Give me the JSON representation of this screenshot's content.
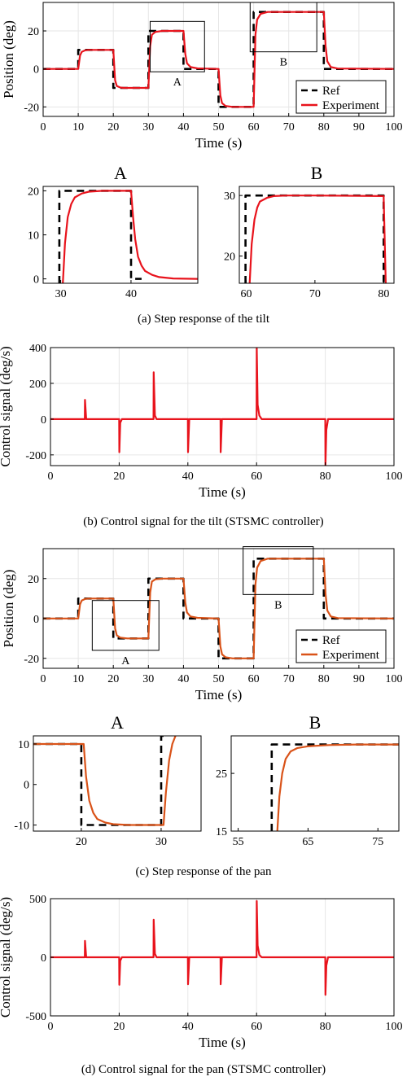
{
  "colors": {
    "ref": "#000000",
    "tilt": "#e8131c",
    "pan": "#d95319",
    "grid": "#e6e6e6"
  },
  "captions": {
    "a": "(a) Step response of the tilt",
    "b": "(b) Control signal for the tilt (STSMC controller)",
    "c": "(c) Step response of the pan",
    "d": "(d) Control signal for the pan (STSMC controller)"
  },
  "chart_data": [
    {
      "id": "tilt_pos",
      "type": "line",
      "xlabel": "Time (s)",
      "ylabel": "Position (deg)",
      "xlim": [
        0,
        100
      ],
      "ylim": [
        -25,
        35
      ],
      "xticks": [
        0,
        10,
        20,
        30,
        40,
        50,
        60,
        70,
        80,
        90,
        100
      ],
      "yticks": [
        -20,
        0,
        20
      ],
      "grid": true,
      "legend": {
        "position": "bottom-right",
        "entries": [
          "Ref",
          "Experiment"
        ]
      },
      "series": [
        {
          "name": "Ref",
          "style": "dashed",
          "color": "#000000",
          "x": [
            0,
            10,
            10,
            20,
            20,
            30,
            30,
            40,
            40,
            50,
            50,
            60,
            60,
            80,
            80,
            100
          ],
          "y": [
            0,
            0,
            10,
            10,
            -10,
            -10,
            20,
            20,
            0,
            0,
            -20,
            -20,
            30,
            30,
            0,
            0
          ]
        },
        {
          "name": "Experiment",
          "style": "solid",
          "color": "#e8131c",
          "x": [
            0,
            10,
            10.5,
            11,
            12,
            13,
            20,
            20.5,
            21,
            22,
            23,
            30,
            30.5,
            31,
            32,
            34,
            40,
            40.5,
            41,
            42,
            44,
            50,
            50.5,
            51,
            52,
            54,
            60,
            60.5,
            61,
            62,
            64,
            80,
            80.5,
            81,
            82,
            84,
            100
          ],
          "y": [
            0,
            0,
            7,
            9,
            9.8,
            10,
            10,
            -6,
            -9,
            -9.8,
            -10,
            -10,
            12,
            18,
            19.5,
            20,
            20,
            8,
            3,
            1,
            0.3,
            0,
            -14,
            -18,
            -19.5,
            -20,
            -20,
            18,
            26,
            29,
            30,
            30,
            12,
            4,
            1,
            0.2,
            0
          ]
        }
      ],
      "zoom_boxes": [
        {
          "label": "A",
          "x0": 30.5,
          "x1": 46,
          "y0": -1.5,
          "y1": 25
        },
        {
          "label": "B",
          "x0": 59,
          "x1": 78,
          "y0": 9,
          "y1": 35
        }
      ]
    },
    {
      "id": "tilt_zoom_A",
      "type": "line",
      "title": "A",
      "xlim": [
        27.5,
        49.5
      ],
      "ylim": [
        -1,
        21
      ],
      "xticks": [
        30,
        40
      ],
      "yticks": [
        0,
        10,
        20
      ],
      "grid": false,
      "series": [
        {
          "name": "Ref",
          "style": "dashed",
          "color": "#000000",
          "x": [
            29.8,
            29.8,
            40,
            40,
            41.5
          ],
          "y": [
            -1,
            20,
            20,
            0,
            0
          ]
        },
        {
          "name": "Experiment",
          "style": "solid",
          "color": "#e8131c",
          "x": [
            30.3,
            30.6,
            31,
            31.5,
            32,
            33,
            34,
            36,
            40,
            40.3,
            40.6,
            41,
            41.5,
            42,
            43,
            44,
            46,
            49.5
          ],
          "y": [
            -1,
            8,
            14,
            17,
            18.5,
            19.4,
            19.8,
            20,
            20,
            14,
            9,
            5,
            3,
            1.8,
            0.9,
            0.4,
            0.1,
            0
          ]
        }
      ]
    },
    {
      "id": "tilt_zoom_B",
      "type": "line",
      "title": "B",
      "xlim": [
        59,
        81.5
      ],
      "ylim": [
        15.5,
        31.5
      ],
      "xticks": [
        60,
        70,
        80
      ],
      "yticks": [
        20,
        30
      ],
      "grid": false,
      "series": [
        {
          "name": "Ref",
          "style": "dashed",
          "color": "#000000",
          "x": [
            59.9,
            59.9,
            64,
            80,
            80
          ],
          "y": [
            15.5,
            30,
            30,
            30,
            15.5
          ]
        },
        {
          "name": "Experiment",
          "style": "solid",
          "color": "#e8131c",
          "x": [
            60.5,
            60.8,
            61.2,
            61.6,
            62,
            63,
            64,
            66,
            70,
            80,
            80.3
          ],
          "y": [
            15.5,
            22,
            26,
            28,
            29,
            29.6,
            29.9,
            30,
            30,
            29.9,
            15.5
          ]
        }
      ]
    },
    {
      "id": "tilt_ctrl",
      "type": "line",
      "xlabel": "Time (s)",
      "ylabel": "Control signal (deg/s)",
      "xlim": [
        0,
        100
      ],
      "ylim": [
        -260,
        400
      ],
      "xticks": [
        0,
        20,
        40,
        60,
        80,
        100
      ],
      "yticks": [
        -200,
        0,
        200,
        400
      ],
      "grid": true,
      "series": [
        {
          "name": "",
          "style": "solid",
          "color": "#e8131c",
          "x": [
            0,
            10,
            10.05,
            10.4,
            20,
            20.05,
            20.3,
            20.8,
            30,
            30.05,
            30.4,
            30.9,
            40,
            40.05,
            40.4,
            49.5,
            49.55,
            49.9,
            60,
            60.05,
            60.3,
            60.8,
            61.5,
            80,
            80.05,
            80.3,
            80.8,
            100
          ],
          "y": [
            0,
            0,
            108,
            0,
            0,
            -185,
            -20,
            0,
            0,
            262,
            20,
            0,
            0,
            -185,
            0,
            0,
            -185,
            0,
            0,
            400,
            80,
            20,
            0,
            0,
            -262,
            -60,
            0,
            0
          ]
        }
      ]
    },
    {
      "id": "pan_pos",
      "type": "line",
      "xlabel": "Time (s)",
      "ylabel": "Position (deg)",
      "xlim": [
        0,
        100
      ],
      "ylim": [
        -25,
        35
      ],
      "xticks": [
        0,
        10,
        20,
        30,
        40,
        50,
        60,
        70,
        80,
        90,
        100
      ],
      "yticks": [
        -20,
        0,
        20
      ],
      "grid": true,
      "legend": {
        "position": "bottom-right",
        "entries": [
          "Ref",
          "Experiment"
        ]
      },
      "series": [
        {
          "name": "Ref",
          "style": "dashed",
          "color": "#000000",
          "x": [
            0,
            10,
            10,
            20,
            20,
            30,
            30,
            40,
            40,
            50,
            50,
            60,
            60,
            80,
            80,
            100
          ],
          "y": [
            0,
            0,
            10,
            10,
            -10,
            -10,
            20,
            20,
            0,
            0,
            -20,
            -20,
            30,
            30,
            0,
            0
          ]
        },
        {
          "name": "Experiment",
          "style": "solid",
          "color": "#d95319",
          "x": [
            0,
            10,
            10.5,
            11,
            12,
            13,
            20,
            20.5,
            21,
            22,
            24,
            30,
            30.5,
            31,
            32,
            34,
            40,
            40.5,
            41,
            42,
            44,
            50,
            50.5,
            51,
            52,
            54,
            60,
            60.5,
            61,
            62,
            64,
            80,
            80.5,
            81,
            82,
            84,
            100
          ],
          "y": [
            0,
            0,
            7,
            9,
            9.8,
            10,
            10,
            -5,
            -8.5,
            -9.6,
            -10,
            -10,
            13,
            18.5,
            19.6,
            20,
            20,
            8,
            3,
            1,
            0.3,
            0,
            -14,
            -18,
            -19.5,
            -20,
            -20,
            17,
            25.5,
            28.8,
            30,
            30,
            12,
            4,
            1,
            0.2,
            0
          ]
        }
      ],
      "zoom_boxes": [
        {
          "label": "A",
          "x0": 14,
          "x1": 33,
          "y0": -16,
          "y1": 9
        },
        {
          "label": "B",
          "x0": 57,
          "x1": 77,
          "y0": 12,
          "y1": 36
        }
      ]
    },
    {
      "id": "pan_zoom_A",
      "type": "line",
      "title": "A",
      "xlim": [
        14,
        35
      ],
      "ylim": [
        -11.5,
        12
      ],
      "xticks": [
        20,
        30
      ],
      "yticks": [
        -10,
        0,
        10
      ],
      "grid": false,
      "series": [
        {
          "name": "Ref",
          "style": "dashed",
          "color": "#000000",
          "x": [
            14,
            20,
            20,
            22,
            30,
            30,
            30.8
          ],
          "y": [
            10,
            10,
            -10,
            -10,
            -10,
            12,
            12
          ]
        },
        {
          "name": "Experiment",
          "style": "solid",
          "color": "#d95319",
          "x": [
            14,
            20.3,
            20.6,
            21,
            21.5,
            22,
            23,
            24,
            26,
            30.3,
            30.6,
            31,
            31.4,
            31.8
          ],
          "y": [
            10,
            10,
            2,
            -4,
            -7,
            -8.5,
            -9.4,
            -9.8,
            -10,
            -10,
            -2,
            6,
            10,
            12
          ]
        }
      ]
    },
    {
      "id": "pan_zoom_B",
      "type": "line",
      "title": "B",
      "xlim": [
        54,
        78
      ],
      "ylim": [
        15,
        31.5
      ],
      "xticks": [
        55,
        65,
        75
      ],
      "yticks": [
        15,
        25
      ],
      "grid": false,
      "series": [
        {
          "name": "Ref",
          "style": "dashed",
          "color": "#000000",
          "x": [
            59.8,
            59.8,
            62,
            78
          ],
          "y": [
            15,
            30,
            30,
            30
          ]
        },
        {
          "name": "Experiment",
          "style": "solid",
          "color": "#d95319",
          "x": [
            60.6,
            60.9,
            61.3,
            61.8,
            62.5,
            63.5,
            65,
            68,
            72,
            78
          ],
          "y": [
            15,
            21,
            25,
            27.5,
            28.8,
            29.4,
            29.7,
            29.9,
            30,
            30
          ]
        }
      ]
    },
    {
      "id": "pan_ctrl",
      "type": "line",
      "xlabel": "Time (s)",
      "ylabel": "Control signal (deg/s)",
      "xlim": [
        0,
        100
      ],
      "ylim": [
        -500,
        500
      ],
      "xticks": [
        0,
        20,
        40,
        60,
        80,
        100
      ],
      "yticks": [
        -500,
        0,
        500
      ],
      "grid": true,
      "series": [
        {
          "name": "",
          "style": "solid",
          "color": "#e8131c",
          "x": [
            0,
            10,
            10.05,
            10.4,
            20,
            20.05,
            20.3,
            20.8,
            30,
            30.05,
            30.4,
            30.9,
            40,
            40.05,
            40.4,
            49.5,
            49.55,
            49.9,
            60,
            60.05,
            60.3,
            60.8,
            61.5,
            80,
            80.05,
            80.3,
            80.8,
            100
          ],
          "y": [
            0,
            0,
            140,
            0,
            0,
            -235,
            -30,
            0,
            0,
            320,
            30,
            0,
            0,
            -230,
            0,
            0,
            -230,
            0,
            0,
            480,
            100,
            20,
            0,
            0,
            -320,
            -70,
            0,
            0
          ]
        }
      ]
    }
  ]
}
